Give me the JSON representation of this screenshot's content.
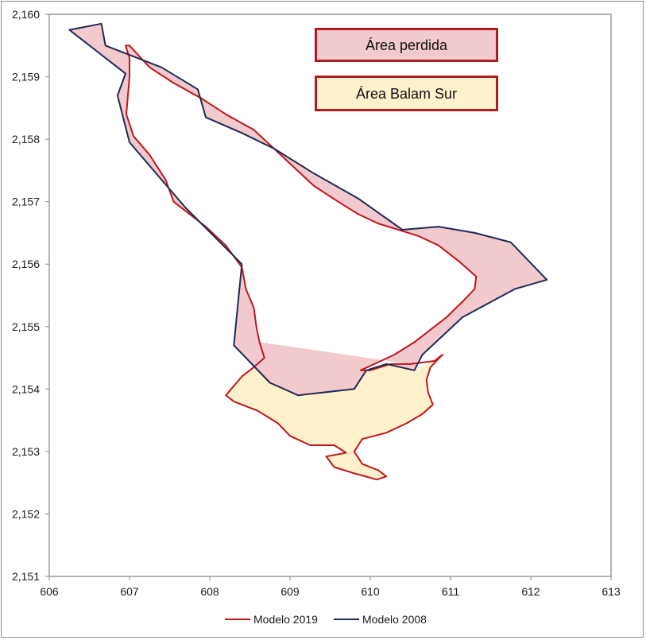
{
  "chart_data": {
    "type": "area",
    "xlim": [
      606,
      613
    ],
    "ylim": [
      2151,
      2160
    ],
    "x_ticks": [
      "606",
      "607",
      "608",
      "609",
      "610",
      "611",
      "612",
      "613"
    ],
    "y_ticks": [
      "2,151",
      "2,152",
      "2,153",
      "2,154",
      "2,155",
      "2,156",
      "2,157",
      "2,158",
      "2,159",
      "2,160"
    ],
    "grid": false,
    "legend_position": "bottom",
    "annotations": [
      {
        "text": "Área perdida",
        "fill": "#f2c9cd",
        "stroke": "#b01c24"
      },
      {
        "text": "Área Balam Sur",
        "fill": "#fff1cc",
        "stroke": "#b01c24"
      }
    ],
    "colors": {
      "modelo_2019": "#c0161c",
      "modelo_2008": "#1f2a55",
      "area_perdida_fill": "#f2c9cd",
      "area_balam_fill": "#fff1cc"
    },
    "series": [
      {
        "name": "Modelo 2019",
        "points": [
          [
            606.95,
            2159.5
          ],
          [
            607.0,
            2159.3
          ],
          [
            607.0,
            2159.0
          ],
          [
            606.98,
            2158.7
          ],
          [
            606.96,
            2158.4
          ],
          [
            607.05,
            2158.05
          ],
          [
            607.25,
            2157.75
          ],
          [
            607.45,
            2157.35
          ],
          [
            607.55,
            2157.0
          ],
          [
            607.75,
            2156.8
          ],
          [
            607.95,
            2156.6
          ],
          [
            608.2,
            2156.3
          ],
          [
            608.4,
            2155.95
          ],
          [
            608.45,
            2155.6
          ],
          [
            608.55,
            2155.3
          ],
          [
            608.58,
            2155.0
          ],
          [
            608.62,
            2154.75
          ],
          [
            608.68,
            2154.5
          ],
          [
            608.55,
            2154.35
          ],
          [
            608.4,
            2154.2
          ],
          [
            608.2,
            2153.9
          ],
          [
            608.3,
            2153.8
          ],
          [
            608.6,
            2153.65
          ],
          [
            608.85,
            2153.45
          ],
          [
            609.0,
            2153.25
          ],
          [
            609.25,
            2153.1
          ],
          [
            609.55,
            2153.1
          ],
          [
            609.7,
            2152.98
          ],
          [
            609.45,
            2152.92
          ],
          [
            609.55,
            2152.75
          ],
          [
            609.8,
            2152.65
          ],
          [
            610.08,
            2152.55
          ],
          [
            610.2,
            2152.6
          ],
          [
            610.1,
            2152.7
          ],
          [
            609.9,
            2152.8
          ],
          [
            609.8,
            2153.0
          ],
          [
            609.9,
            2153.2
          ],
          [
            610.2,
            2153.3
          ],
          [
            610.45,
            2153.45
          ],
          [
            610.65,
            2153.6
          ],
          [
            610.78,
            2153.75
          ],
          [
            610.72,
            2153.95
          ],
          [
            610.7,
            2154.15
          ],
          [
            610.75,
            2154.35
          ],
          [
            610.9,
            2154.55
          ],
          [
            610.8,
            2154.45
          ],
          [
            610.5,
            2154.4
          ],
          [
            610.25,
            2154.4
          ],
          [
            610.0,
            2154.3
          ],
          [
            609.88,
            2154.3
          ],
          [
            610.05,
            2154.4
          ],
          [
            610.3,
            2154.55
          ],
          [
            610.55,
            2154.75
          ],
          [
            610.75,
            2154.95
          ],
          [
            610.95,
            2155.15
          ],
          [
            611.15,
            2155.4
          ],
          [
            611.3,
            2155.6
          ],
          [
            611.32,
            2155.8
          ],
          [
            611.1,
            2156.05
          ],
          [
            610.85,
            2156.3
          ],
          [
            610.6,
            2156.45
          ],
          [
            610.35,
            2156.55
          ],
          [
            610.1,
            2156.65
          ],
          [
            609.85,
            2156.8
          ],
          [
            609.6,
            2157.0
          ],
          [
            609.3,
            2157.25
          ],
          [
            609.05,
            2157.55
          ],
          [
            608.8,
            2157.85
          ],
          [
            608.55,
            2158.15
          ],
          [
            608.2,
            2158.4
          ],
          [
            607.9,
            2158.65
          ],
          [
            607.55,
            2158.9
          ],
          [
            607.25,
            2159.15
          ],
          [
            607.0,
            2159.5
          ]
        ]
      },
      {
        "name": "Modelo 2008",
        "points": [
          [
            606.25,
            2159.75
          ],
          [
            606.65,
            2159.85
          ],
          [
            606.7,
            2159.5
          ],
          [
            607.4,
            2159.15
          ],
          [
            607.85,
            2158.8
          ],
          [
            607.95,
            2158.35
          ],
          [
            608.4,
            2158.1
          ],
          [
            608.8,
            2157.85
          ],
          [
            609.3,
            2157.45
          ],
          [
            609.85,
            2157.05
          ],
          [
            610.4,
            2156.55
          ],
          [
            610.85,
            2156.6
          ],
          [
            611.3,
            2156.5
          ],
          [
            611.75,
            2156.35
          ],
          [
            612.2,
            2155.75
          ],
          [
            611.8,
            2155.6
          ],
          [
            611.15,
            2155.15
          ],
          [
            610.65,
            2154.55
          ],
          [
            610.55,
            2154.3
          ],
          [
            610.2,
            2154.4
          ],
          [
            609.95,
            2154.3
          ],
          [
            609.8,
            2154.0
          ],
          [
            609.45,
            2153.95
          ],
          [
            609.1,
            2153.9
          ],
          [
            608.75,
            2154.1
          ],
          [
            608.3,
            2154.7
          ],
          [
            608.4,
            2156.0
          ],
          [
            607.7,
            2156.9
          ],
          [
            607.0,
            2157.95
          ],
          [
            606.85,
            2158.7
          ],
          [
            606.95,
            2159.05
          ],
          [
            606.25,
            2159.75
          ]
        ]
      }
    ]
  }
}
